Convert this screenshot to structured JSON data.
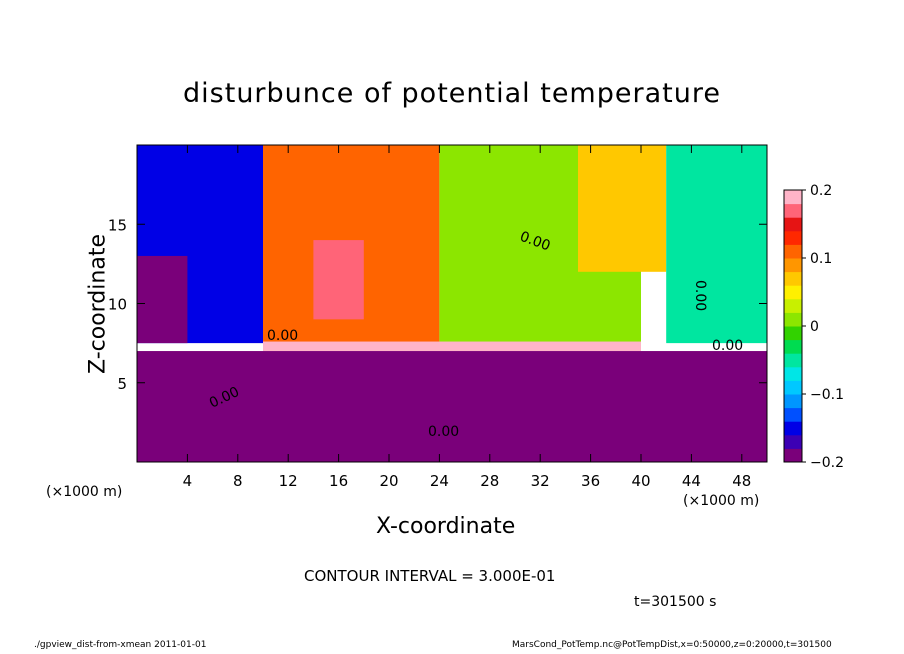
{
  "title": "disturbunce of potential temperature",
  "x_unit_left": "(×1000 m)",
  "x_unit_right": "(×1000 m)",
  "contour_interval": "CONTOUR INTERVAL = 3.000E-01",
  "time": "t=301500 s",
  "footer_left": "./gpview_dist-from-xmean  2011-01-01",
  "footer_right": "MarsCond_PotTemp.nc@PotTempDist,x=0:50000,z=0:20000,t=301500",
  "chart_data": {
    "type": "heatmap",
    "title": "disturbunce of potential temperature",
    "xlabel": "X-coordinate",
    "ylabel": "Z-coordinate",
    "xlim": [
      0,
      50
    ],
    "ylim": [
      0,
      20
    ],
    "x_ticks": [
      4,
      8,
      12,
      16,
      20,
      24,
      28,
      32,
      36,
      40,
      44,
      48
    ],
    "y_ticks": [
      5,
      10,
      15
    ],
    "colorbar": {
      "min": -0.2,
      "max": 0.2,
      "ticks": [
        {
          "value": 0.2,
          "label": "0.2"
        },
        {
          "value": 0.1,
          "label": "0.1"
        },
        {
          "value": 0,
          "label": "0"
        },
        {
          "value": -0.1,
          "label": "−0.1"
        },
        {
          "value": -0.2,
          "label": "−0.2"
        }
      ],
      "colors": [
        "#7a007a",
        "#3c00b4",
        "#0000e6",
        "#0050ff",
        "#0096ff",
        "#00c8ff",
        "#00e6e6",
        "#00e6a0",
        "#00dc50",
        "#32d200",
        "#8ce600",
        "#c8f000",
        "#fff000",
        "#ffc800",
        "#ff9600",
        "#ff6400",
        "#ff2800",
        "#e61414",
        "#ff6478",
        "#ffb4c8"
      ]
    },
    "contour_labels": [
      "0.00",
      "0.00",
      "0.00",
      "0.00",
      "0.00",
      "0.00"
    ],
    "field_regions": [
      {
        "name": "upper-left",
        "x": [
          0,
          10
        ],
        "z": [
          7.5,
          20
        ],
        "value": -0.15
      },
      {
        "name": "far-left-core",
        "x": [
          0,
          4
        ],
        "z": [
          7.5,
          13
        ],
        "value": -0.2
      },
      {
        "name": "warm-core",
        "x": [
          10,
          24
        ],
        "z": [
          7.5,
          20
        ],
        "value": 0.12
      },
      {
        "name": "warm-center",
        "x": [
          14,
          18
        ],
        "z": [
          9,
          14
        ],
        "value": 0.17
      },
      {
        "name": "upper-middle",
        "x": [
          24,
          40
        ],
        "z": [
          7.5,
          20
        ],
        "value": 0.02
      },
      {
        "name": "upper-right-warm",
        "x": [
          35,
          42
        ],
        "z": [
          12,
          20
        ],
        "value": 0.06
      },
      {
        "name": "upper-right",
        "x": [
          42,
          50
        ],
        "z": [
          7.5,
          20
        ],
        "value": -0.05
      },
      {
        "name": "inversion-layer",
        "x": [
          10,
          40
        ],
        "z": [
          7,
          7.6
        ],
        "value": 0.2
      },
      {
        "name": "lower-layer",
        "x": [
          0,
          50
        ],
        "z": [
          0,
          7
        ],
        "value": -0.2
      }
    ]
  }
}
